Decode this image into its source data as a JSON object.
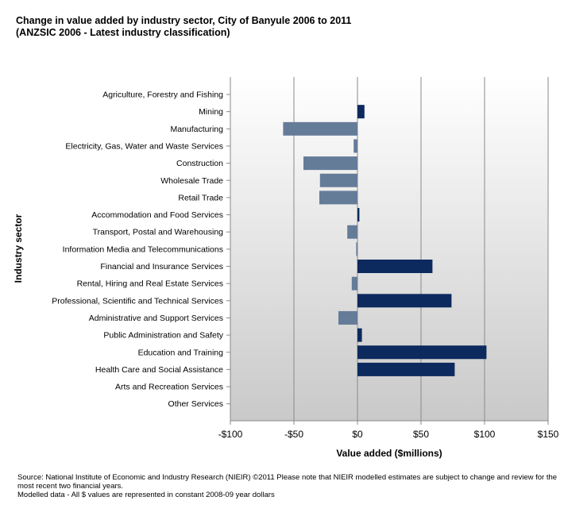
{
  "title": {
    "line1": "Change in value added by industry sector, City of Banyule 2006 to 2011",
    "line2": "(ANZSIC 2006 - Latest industry classification)"
  },
  "colors": {
    "positive": "#0d2a5e",
    "negative": "#657c99",
    "grid": "#8a8a8a",
    "plot_top": "#ffffff",
    "plot_bottom": "#c9c9c9"
  },
  "chart_data": {
    "type": "bar",
    "orientation": "horizontal",
    "ylabel": "Industry sector",
    "xlabel": "Value added ($millions)",
    "xlim": [
      -100,
      150
    ],
    "xticks": [
      -100,
      -50,
      0,
      50,
      100,
      150
    ],
    "xtick_labels": [
      "-$100",
      "-$50",
      "$0",
      "$50",
      "$100",
      "$150"
    ],
    "categories": [
      "Agriculture, Forestry and Fishing",
      "Mining",
      "Manufacturing",
      "Electricity, Gas, Water and Waste Services",
      "Construction",
      "Wholesale Trade",
      "Retail Trade",
      "Accommodation and Food Services",
      "Transport, Postal and Warehousing",
      "Information Media and Telecommunications",
      "Financial and Insurance Services",
      "Rental, Hiring and Real Estate Services",
      "Professional, Scientific and Technical Services",
      "Administrative and Support Services",
      "Public Administration and Safety",
      "Education and Training",
      "Health Care and Social Assistance",
      "Arts and Recreation Services",
      "Other Services"
    ],
    "values": [
      0,
      5.5,
      -58.5,
      -3,
      -42.5,
      -29.5,
      -30,
      1.5,
      -8,
      -1,
      59,
      -4.5,
      74,
      -15,
      3.5,
      101.5,
      76.5,
      0,
      0
    ]
  },
  "footer": {
    "source": "Source:  National Institute of Economic and Industry Research (NIEIR) ©2011  Please note that NIEIR modelled estimates are subject to change and review for the most recent two financial years.",
    "note": "Modelled data - All $ values are represented in constant 2008-09 year dollars"
  }
}
